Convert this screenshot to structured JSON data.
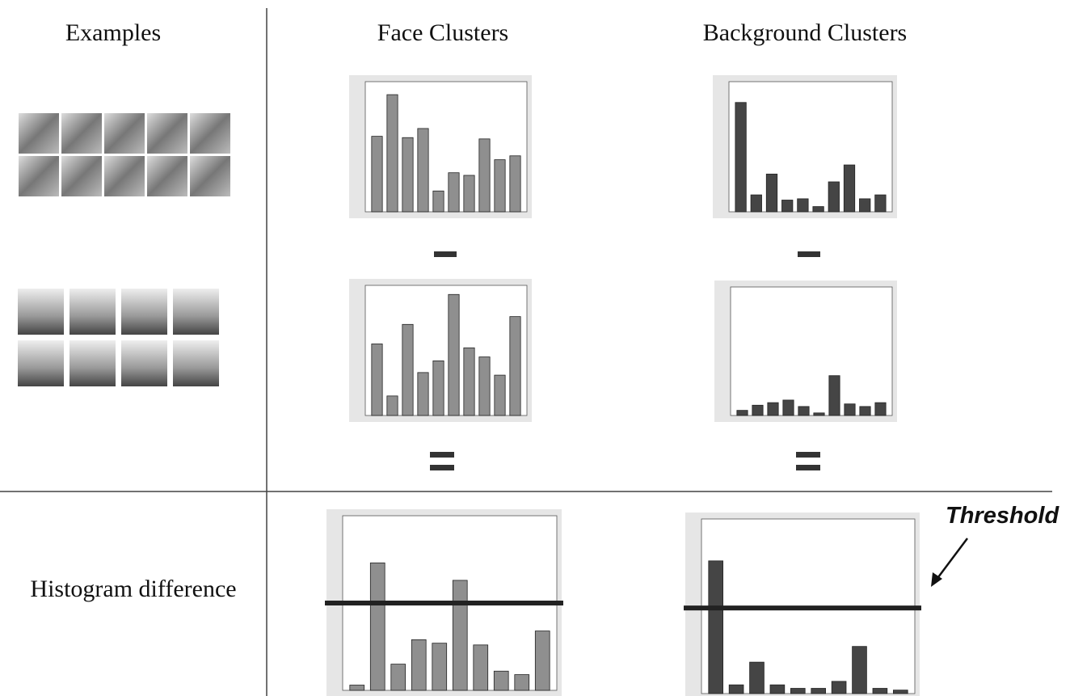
{
  "headers": {
    "examples": "Examples",
    "face": "Face Clusters",
    "background": "Background Clusters",
    "difference": "Histogram difference",
    "threshold": "Threshold"
  },
  "chart_data": [
    {
      "type": "bar",
      "color": "#8f8f8f",
      "ylim": [
        0,
        100
      ],
      "values": [
        58,
        90,
        57,
        64,
        16,
        30,
        28,
        56,
        40,
        43
      ]
    },
    {
      "type": "bar",
      "color": "#454545",
      "ylim": [
        0,
        100
      ],
      "values": [
        84,
        13,
        29,
        9,
        10,
        4,
        23,
        36,
        10,
        13
      ]
    },
    {
      "type": "bar",
      "color": "#8f8f8f",
      "ylim": [
        0,
        100
      ],
      "values": [
        55,
        15,
        70,
        33,
        42,
        93,
        52,
        45,
        31,
        76
      ]
    },
    {
      "type": "bar",
      "color": "#454545",
      "ylim": [
        0,
        100
      ],
      "values": [
        4,
        8,
        10,
        12,
        7,
        2,
        31,
        9,
        7,
        10
      ]
    },
    {
      "type": "bar",
      "color": "#8f8f8f",
      "ylim": [
        0,
        100
      ],
      "values": [
        3,
        73,
        15,
        29,
        27,
        63,
        26,
        11,
        9,
        34
      ],
      "threshold": 50
    },
    {
      "type": "bar",
      "color": "#454545",
      "ylim": [
        0,
        100
      ],
      "values": [
        76,
        5,
        18,
        5,
        3,
        3,
        7,
        27,
        3,
        2
      ],
      "threshold": 49
    }
  ]
}
